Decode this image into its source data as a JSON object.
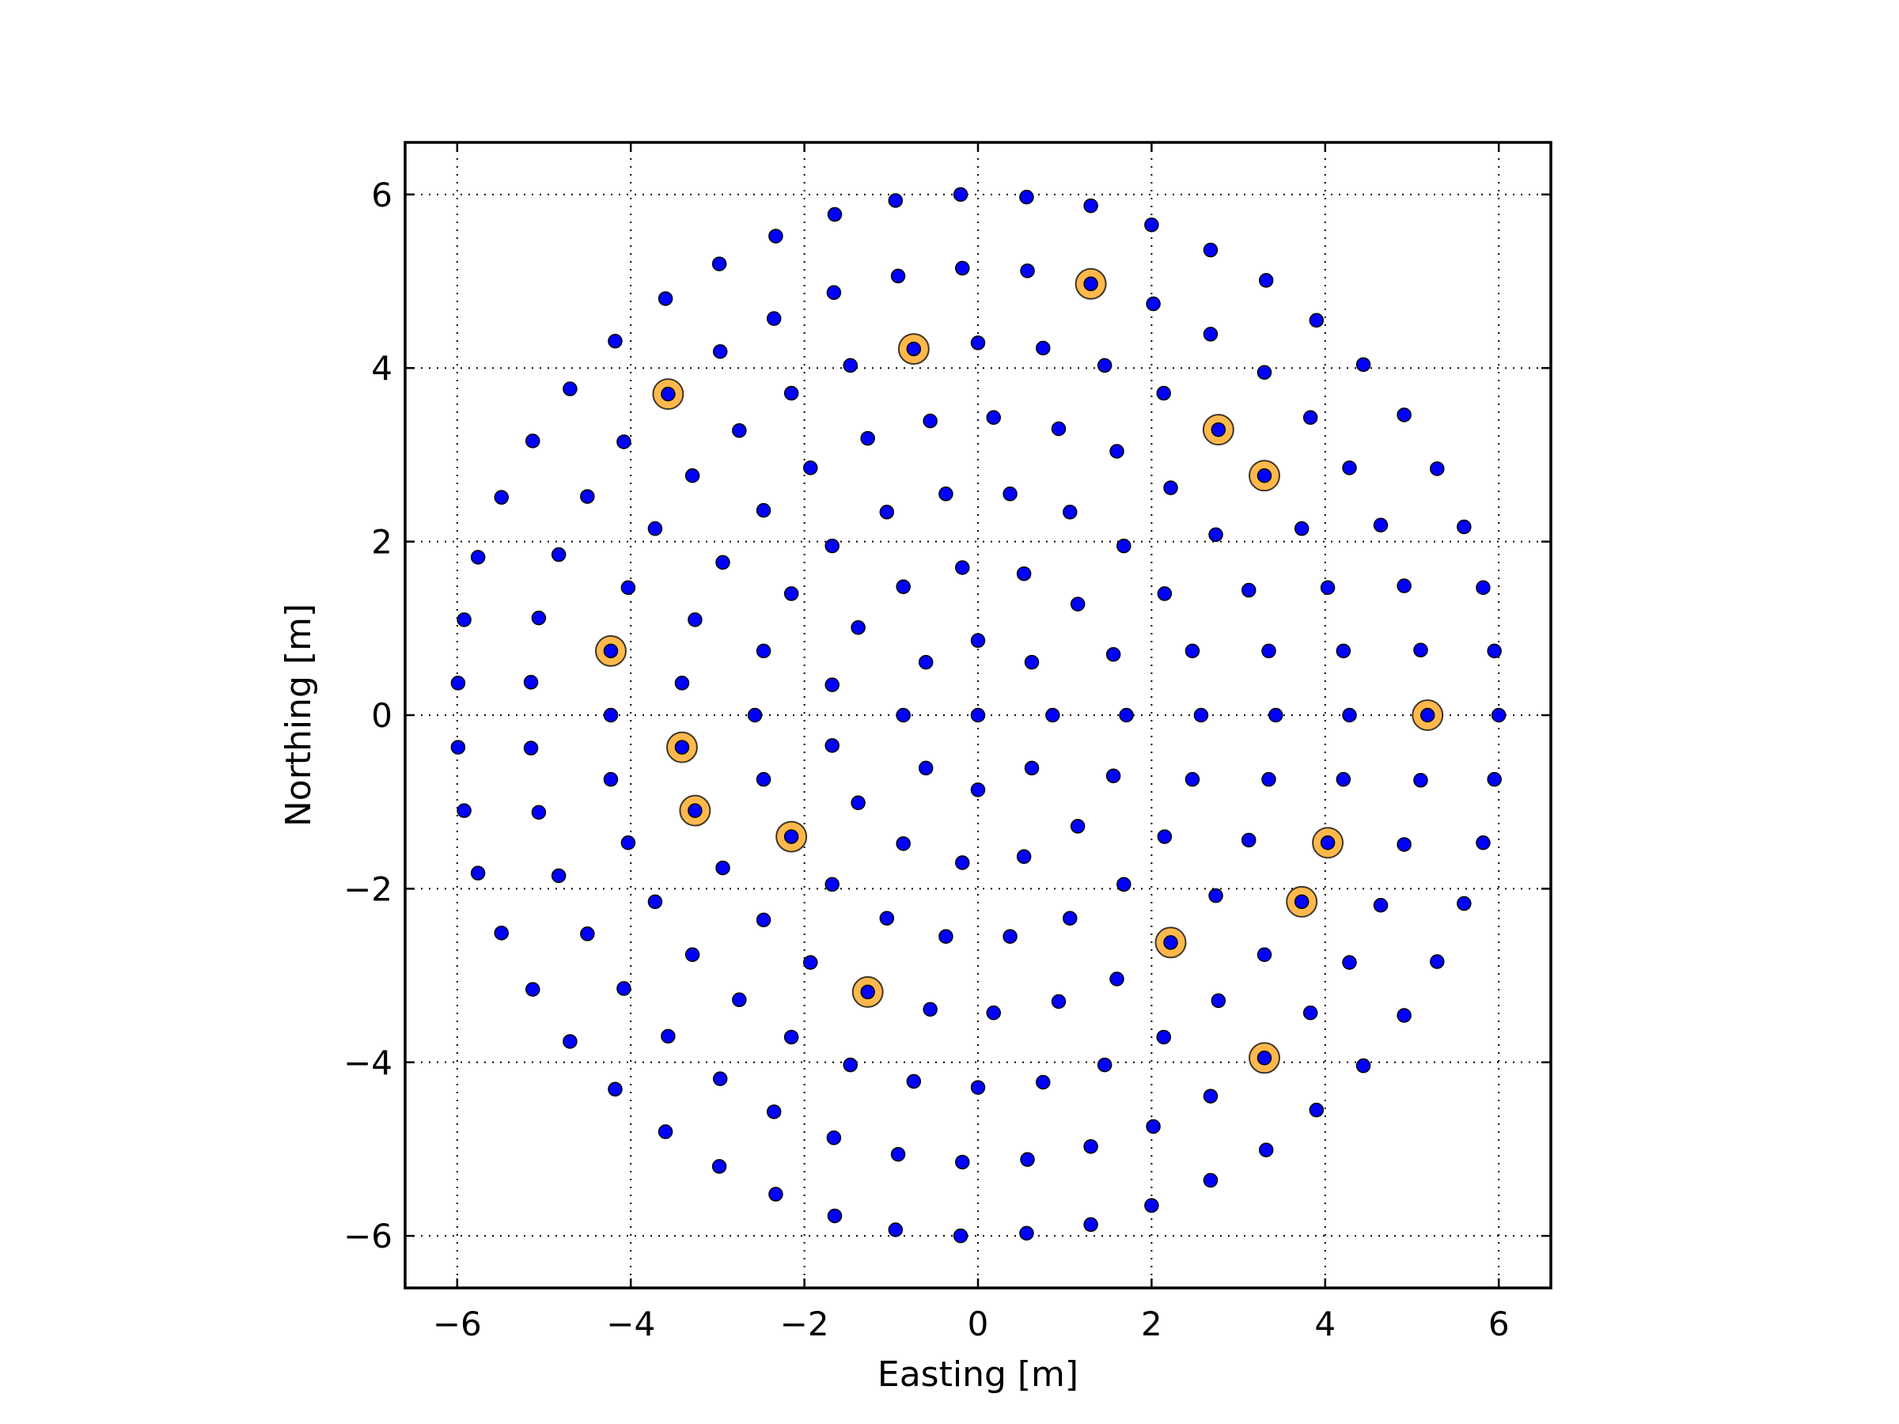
{
  "chart_data": {
    "type": "scatter",
    "title": "",
    "xlabel": "Easting [m]",
    "ylabel": "Northing [m]",
    "xlim": [
      -6.6,
      6.6
    ],
    "ylim": [
      -6.6,
      6.6
    ],
    "xticks": [
      -6,
      -4,
      -2,
      0,
      2,
      4,
      6
    ],
    "yticks": [
      -6,
      -4,
      -2,
      0,
      2,
      4,
      6
    ],
    "xtick_labels": [
      "−6",
      "−4",
      "−2",
      "0",
      "2",
      "4",
      "6"
    ],
    "ytick_labels": [
      "−6",
      "−4",
      "−2",
      "0",
      "2",
      "4",
      "6"
    ],
    "grid": true,
    "grid_style": "dotted",
    "colors": {
      "points": "#0000ff",
      "highlight": "#ffb84d",
      "edge": "#000000"
    },
    "series": [
      {
        "marker": "small-dot",
        "color": "#0000ff",
        "points": [
          [
            -0.2,
            6.0
          ],
          [
            0.56,
            5.97
          ],
          [
            1.3,
            5.87
          ],
          [
            2.0,
            5.65
          ],
          [
            -0.95,
            5.93
          ],
          [
            -1.65,
            5.77
          ],
          [
            -2.33,
            5.52
          ],
          [
            2.68,
            5.36
          ],
          [
            3.32,
            5.01
          ],
          [
            3.9,
            4.55
          ],
          [
            4.44,
            4.04
          ],
          [
            4.91,
            3.46
          ],
          [
            5.29,
            2.84
          ],
          [
            5.6,
            2.17
          ],
          [
            5.82,
            1.47
          ],
          [
            5.95,
            0.74
          ],
          [
            6.0,
            0.0
          ],
          [
            -2.98,
            5.2
          ],
          [
            -3.6,
            4.8
          ],
          [
            -4.18,
            4.31
          ],
          [
            -4.7,
            3.76
          ],
          [
            -5.13,
            3.16
          ],
          [
            -5.49,
            2.51
          ],
          [
            -5.76,
            1.82
          ],
          [
            -5.92,
            1.1
          ],
          [
            -5.99,
            0.37
          ],
          [
            -0.18,
            5.15
          ],
          [
            0.57,
            5.12
          ],
          [
            1.3,
            4.97
          ],
          [
            2.02,
            4.74
          ],
          [
            2.68,
            4.39
          ],
          [
            3.3,
            3.95
          ],
          [
            3.83,
            3.43
          ],
          [
            4.28,
            2.85
          ],
          [
            4.64,
            2.19
          ],
          [
            4.91,
            1.49
          ],
          [
            5.1,
            0.75
          ],
          [
            5.18,
            0.0
          ],
          [
            -0.92,
            5.06
          ],
          [
            -1.66,
            4.87
          ],
          [
            -2.35,
            4.57
          ],
          [
            -2.97,
            4.19
          ],
          [
            -3.57,
            3.7
          ],
          [
            -4.08,
            3.15
          ],
          [
            -4.5,
            2.52
          ],
          [
            -4.83,
            1.85
          ],
          [
            -5.06,
            1.12
          ],
          [
            -5.15,
            0.38
          ],
          [
            0.0,
            4.29
          ],
          [
            0.75,
            4.23
          ],
          [
            1.46,
            4.03
          ],
          [
            2.14,
            3.71
          ],
          [
            2.77,
            3.29
          ],
          [
            3.3,
            2.76
          ],
          [
            3.73,
            2.15
          ],
          [
            4.03,
            1.47
          ],
          [
            4.21,
            0.74
          ],
          [
            4.28,
            0.0
          ],
          [
            -0.74,
            4.22
          ],
          [
            -1.47,
            4.03
          ],
          [
            -2.15,
            3.71
          ],
          [
            -2.75,
            3.28
          ],
          [
            -3.29,
            2.76
          ],
          [
            -3.72,
            2.15
          ],
          [
            -4.03,
            1.47
          ],
          [
            -4.23,
            0.74
          ],
          [
            0.18,
            3.43
          ],
          [
            0.93,
            3.3
          ],
          [
            1.6,
            3.04
          ],
          [
            2.22,
            2.62
          ],
          [
            2.74,
            2.08
          ],
          [
            3.12,
            1.44
          ],
          [
            3.35,
            0.74
          ],
          [
            3.43,
            0.0
          ],
          [
            -0.55,
            3.39
          ],
          [
            -1.27,
            3.19
          ],
          [
            -1.93,
            2.85
          ],
          [
            -2.47,
            2.36
          ],
          [
            -2.94,
            1.76
          ],
          [
            -3.26,
            1.1
          ],
          [
            -3.41,
            0.37
          ],
          [
            -0.37,
            2.55
          ],
          [
            0.37,
            2.55
          ],
          [
            1.06,
            2.34
          ],
          [
            1.68,
            1.95
          ],
          [
            2.15,
            1.4
          ],
          [
            2.47,
            0.74
          ],
          [
            2.57,
            0.0
          ],
          [
            -1.05,
            2.34
          ],
          [
            -1.68,
            1.95
          ],
          [
            -2.15,
            1.4
          ],
          [
            -2.47,
            0.74
          ],
          [
            -2.57,
            0.0
          ],
          [
            -0.18,
            1.7
          ],
          [
            0.53,
            1.63
          ],
          [
            1.15,
            1.28
          ],
          [
            1.56,
            0.7
          ],
          [
            1.71,
            0.0
          ],
          [
            -0.86,
            1.48
          ],
          [
            -1.38,
            1.01
          ],
          [
            -1.68,
            0.35
          ],
          [
            0.0,
            0.86
          ],
          [
            0.62,
            0.61
          ],
          [
            0.86,
            0.0
          ],
          [
            -0.6,
            0.61
          ],
          [
            -0.86,
            0.0
          ],
          [
            0.0,
            0.0
          ],
          [
            0.0,
            -0.86
          ],
          [
            0.62,
            -0.61
          ],
          [
            -0.6,
            -0.61
          ],
          [
            -0.86,
            -1.48
          ],
          [
            -1.38,
            -1.01
          ],
          [
            -1.68,
            -0.35
          ],
          [
            -0.18,
            -1.7
          ],
          [
            0.53,
            -1.63
          ],
          [
            1.15,
            -1.28
          ],
          [
            1.56,
            -0.7
          ],
          [
            -1.05,
            -2.34
          ],
          [
            -1.68,
            -1.95
          ],
          [
            -2.15,
            -1.4
          ],
          [
            -2.47,
            -0.74
          ],
          [
            -0.37,
            -2.55
          ],
          [
            0.37,
            -2.55
          ],
          [
            1.06,
            -2.34
          ],
          [
            1.68,
            -1.95
          ],
          [
            2.15,
            -1.4
          ],
          [
            2.47,
            -0.74
          ],
          [
            -0.55,
            -3.39
          ],
          [
            -1.27,
            -3.19
          ],
          [
            -1.93,
            -2.85
          ],
          [
            -2.47,
            -2.36
          ],
          [
            -2.94,
            -1.76
          ],
          [
            -3.26,
            -1.1
          ],
          [
            -3.41,
            -0.37
          ],
          [
            0.18,
            -3.43
          ],
          [
            0.93,
            -3.3
          ],
          [
            1.6,
            -3.04
          ],
          [
            2.22,
            -2.62
          ],
          [
            2.74,
            -2.08
          ],
          [
            3.12,
            -1.44
          ],
          [
            3.35,
            -0.74
          ],
          [
            -0.74,
            -4.22
          ],
          [
            -1.47,
            -4.03
          ],
          [
            -2.15,
            -3.71
          ],
          [
            -2.75,
            -3.28
          ],
          [
            -3.29,
            -2.76
          ],
          [
            -3.72,
            -2.15
          ],
          [
            -4.03,
            -1.47
          ],
          [
            -4.23,
            -0.74
          ],
          [
            -4.23,
            0.0
          ],
          [
            0.0,
            -4.29
          ],
          [
            0.75,
            -4.23
          ],
          [
            1.46,
            -4.03
          ],
          [
            2.14,
            -3.71
          ],
          [
            2.77,
            -3.29
          ],
          [
            3.3,
            -2.76
          ],
          [
            3.73,
            -2.15
          ],
          [
            4.03,
            -1.47
          ],
          [
            4.21,
            -0.74
          ],
          [
            -0.92,
            -5.06
          ],
          [
            -1.66,
            -4.87
          ],
          [
            -2.35,
            -4.57
          ],
          [
            -2.97,
            -4.19
          ],
          [
            -3.57,
            -3.7
          ],
          [
            -4.08,
            -3.15
          ],
          [
            -4.5,
            -2.52
          ],
          [
            -4.83,
            -1.85
          ],
          [
            -5.06,
            -1.12
          ],
          [
            -5.15,
            -0.38
          ],
          [
            -0.18,
            -5.15
          ],
          [
            0.57,
            -5.12
          ],
          [
            1.3,
            -4.97
          ],
          [
            2.02,
            -4.74
          ],
          [
            2.68,
            -4.39
          ],
          [
            3.3,
            -3.95
          ],
          [
            3.83,
            -3.43
          ],
          [
            4.28,
            -2.85
          ],
          [
            4.64,
            -2.19
          ],
          [
            4.91,
            -1.49
          ],
          [
            5.1,
            -0.75
          ],
          [
            -0.2,
            -6.0
          ],
          [
            0.56,
            -5.97
          ],
          [
            1.3,
            -5.87
          ],
          [
            2.0,
            -5.65
          ],
          [
            -0.95,
            -5.93
          ],
          [
            -1.65,
            -5.77
          ],
          [
            -2.33,
            -5.52
          ],
          [
            2.68,
            -5.36
          ],
          [
            3.32,
            -5.01
          ],
          [
            3.9,
            -4.55
          ],
          [
            4.44,
            -4.04
          ],
          [
            4.91,
            -3.46
          ],
          [
            5.29,
            -2.84
          ],
          [
            5.6,
            -2.17
          ],
          [
            5.82,
            -1.47
          ],
          [
            5.95,
            -0.74
          ],
          [
            -2.98,
            -5.2
          ],
          [
            -3.6,
            -4.8
          ],
          [
            -4.18,
            -4.31
          ],
          [
            -4.7,
            -3.76
          ],
          [
            -5.13,
            -3.16
          ],
          [
            -5.49,
            -2.51
          ],
          [
            -5.76,
            -1.82
          ],
          [
            -5.92,
            -1.1
          ],
          [
            -5.99,
            -0.37
          ]
        ]
      },
      {
        "marker": "large-circle",
        "color": "#ffb84d",
        "points": [
          [
            1.3,
            4.97
          ],
          [
            -0.74,
            4.22
          ],
          [
            -3.57,
            3.7
          ],
          [
            2.77,
            3.29
          ],
          [
            3.3,
            2.76
          ],
          [
            -4.23,
            0.74
          ],
          [
            5.18,
            0.0
          ],
          [
            -3.41,
            -0.37
          ],
          [
            -3.26,
            -1.1
          ],
          [
            -2.15,
            -1.4
          ],
          [
            4.03,
            -1.47
          ],
          [
            3.73,
            -2.15
          ],
          [
            2.22,
            -2.62
          ],
          [
            -1.27,
            -3.19
          ],
          [
            3.3,
            -3.95
          ]
        ]
      }
    ]
  }
}
